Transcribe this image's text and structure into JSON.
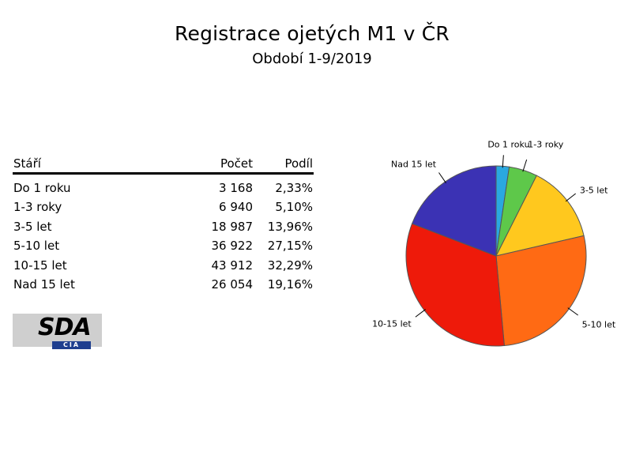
{
  "title": "Registrace ojetých M1 v ČR",
  "subtitle": "Období 1-9/2019",
  "table": {
    "headers": [
      "Stáří",
      "Počet",
      "Podíl"
    ],
    "rows": [
      {
        "label": "Do 1 roku",
        "count": "3 168",
        "share": "2,33%"
      },
      {
        "label": "1-3 roky",
        "count": "6 940",
        "share": "5,10%"
      },
      {
        "label": "3-5 let",
        "count": "18 987",
        "share": "13,96%"
      },
      {
        "label": "5-10 let",
        "count": "36 922",
        "share": "27,15%"
      },
      {
        "label": "10-15 let",
        "count": "43 912",
        "share": "32,29%"
      },
      {
        "label": "Nad 15 let",
        "count": "26 054",
        "share": "19,16%"
      }
    ]
  },
  "logo": {
    "text": "SDA",
    "subtext": "CIA"
  },
  "chart_data": {
    "type": "pie",
    "categories": [
      "Do 1 roku",
      "1-3 roky",
      "3-5 let",
      "5-10 let",
      "10-15 let",
      "Nad 15 let"
    ],
    "values": [
      2.33,
      5.1,
      13.96,
      27.15,
      32.29,
      19.16
    ],
    "colors": [
      "#2aa8e0",
      "#5ec84a",
      "#ffc81e",
      "#ff6a14",
      "#ee1a0a",
      "#3b32b4"
    ],
    "outline_color": "#555555"
  }
}
